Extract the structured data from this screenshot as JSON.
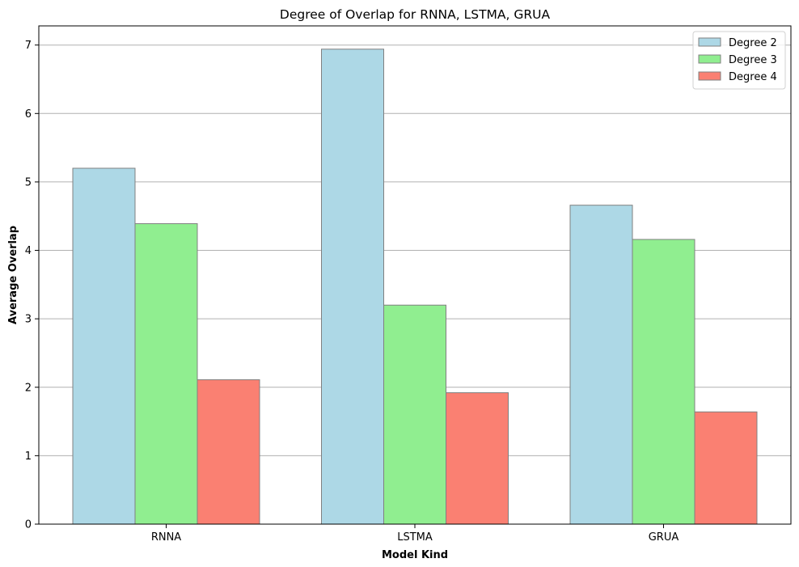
{
  "chart_data": {
    "type": "bar",
    "title": "Degree of Overlap for RNNA, LSTMA, GRUA",
    "xlabel": "Model Kind",
    "ylabel": "Average Overlap",
    "categories": [
      "RNNA",
      "LSTMA",
      "GRUA"
    ],
    "series": [
      {
        "name": "Degree 2",
        "color": "#add8e6",
        "values": [
          5.2,
          6.94,
          4.66
        ]
      },
      {
        "name": "Degree 3",
        "color": "#90ee90",
        "values": [
          4.39,
          3.2,
          4.16
        ]
      },
      {
        "name": "Degree 4",
        "color": "#fa8072",
        "values": [
          2.11,
          1.92,
          1.64
        ]
      }
    ],
    "ylim": [
      0,
      7.28
    ],
    "yticks": [
      0,
      1,
      2,
      3,
      4,
      5,
      6,
      7
    ],
    "grid": "y",
    "legend_position": "top-right",
    "bar_edge_color": "#808080"
  }
}
